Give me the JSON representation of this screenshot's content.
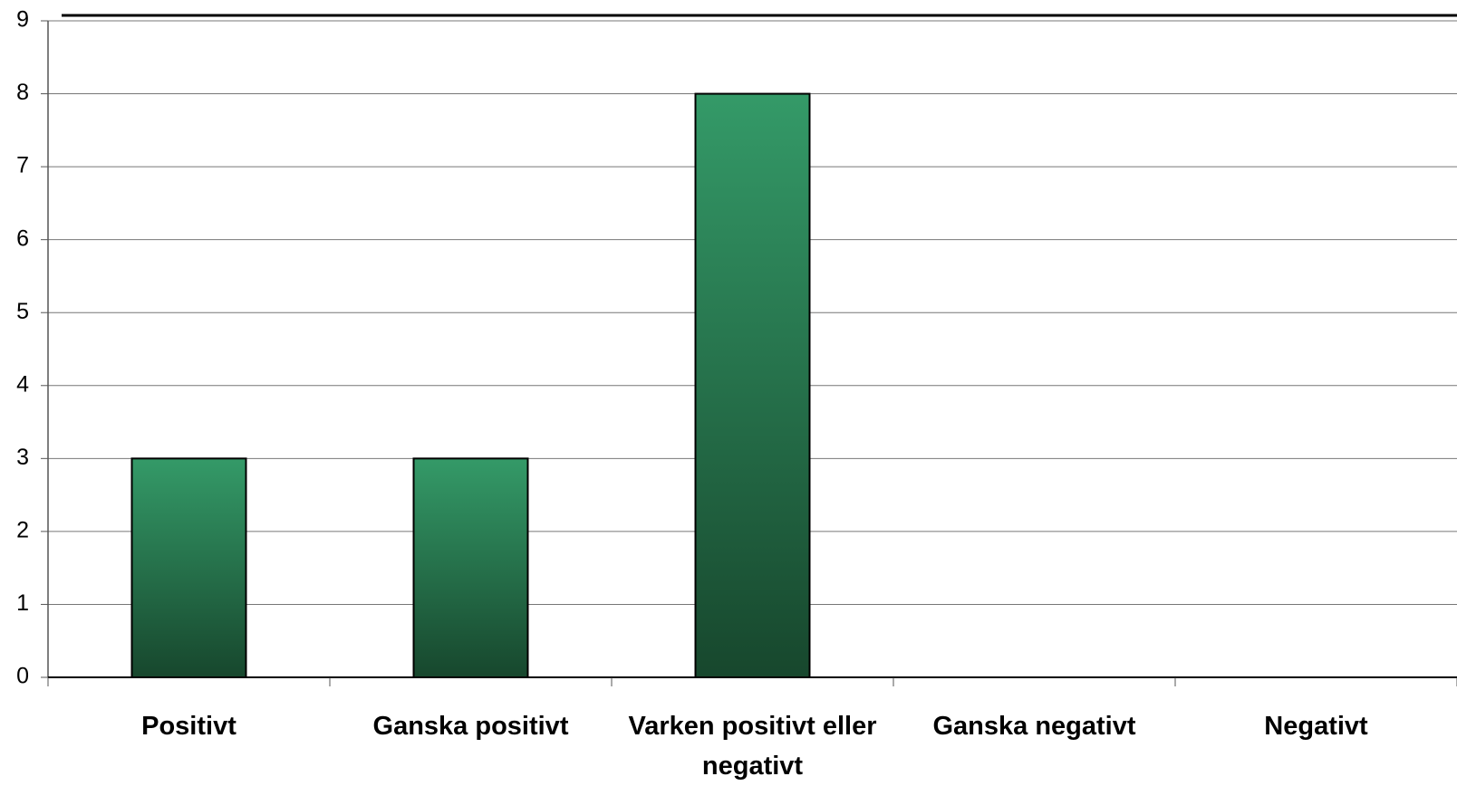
{
  "chart_data": {
    "type": "bar",
    "categories": [
      "Positivt",
      "Ganska positivt",
      "Varken positivt eller negativt",
      "Ganska negativt",
      "Negativt"
    ],
    "values": [
      3,
      3,
      8,
      0,
      0
    ],
    "color": "#349a68",
    "ylim": [
      0,
      9
    ],
    "yticks": [
      0,
      1,
      2,
      3,
      4,
      5,
      6,
      7,
      8,
      9
    ],
    "grid": true
  }
}
